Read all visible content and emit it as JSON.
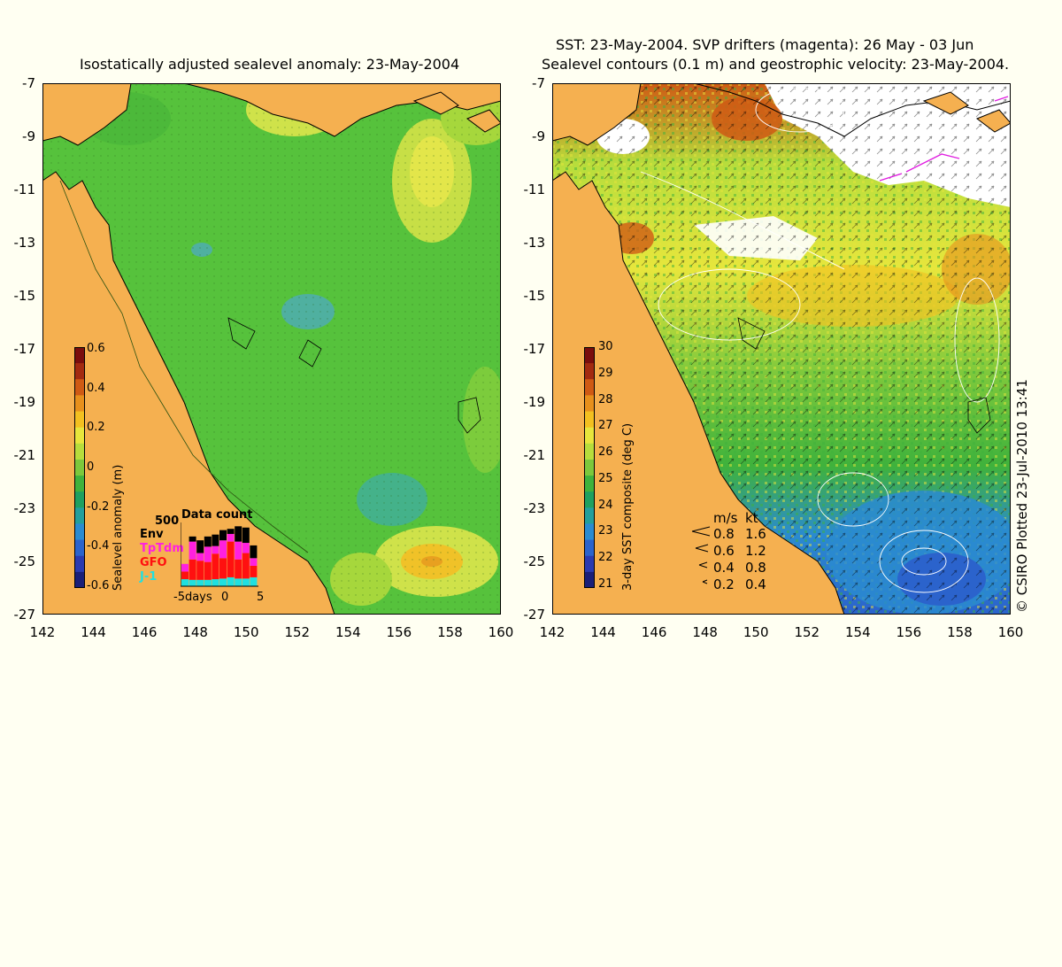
{
  "left": {
    "title": "Isostatically adjusted sealevel anomaly: 23-May-2004",
    "colorbar": {
      "label": "Sealevel anomaly (m)",
      "ticks": [
        "0.6",
        "0.4",
        "0.2",
        "0",
        "-0.2",
        "-0.4",
        "-0.6"
      ],
      "colors": [
        "#7a0d0d",
        "#a32a10",
        "#cf5a14",
        "#e7901c",
        "#f3c020",
        "#e7e63c",
        "#b7dd3c",
        "#7cc83c",
        "#3fb23c",
        "#1ea060",
        "#239f9c",
        "#2a8bd0",
        "#2b63cc",
        "#2a3ab0",
        "#1a1f78"
      ]
    },
    "data_count": {
      "title": "Data count",
      "max_label": "500",
      "legend": [
        {
          "name": "Env",
          "color": "#000000"
        },
        {
          "name": "TpTdm",
          "color": "#ff20e0"
        },
        {
          "name": "GFO",
          "color": "#ff1010"
        },
        {
          "name": "J-1",
          "color": "#20e0e0"
        }
      ],
      "x_min_label": "-5days",
      "x_mid_label": "0",
      "x_max_label": "5",
      "bars": [
        {
          "j1": 55,
          "gfo": 60,
          "tp": 60,
          "env": 0
        },
        {
          "j1": 50,
          "gfo": 160,
          "tp": 140,
          "env": 40
        },
        {
          "j1": 50,
          "gfo": 150,
          "tp": 60,
          "env": 100
        },
        {
          "j1": 50,
          "gfo": 140,
          "tp": 120,
          "env": 80
        },
        {
          "j1": 55,
          "gfo": 200,
          "tp": 60,
          "env": 90
        },
        {
          "j1": 60,
          "gfo": 160,
          "tp": 140,
          "env": 80
        },
        {
          "j1": 70,
          "gfo": 280,
          "tp": 60,
          "env": 40
        },
        {
          "j1": 60,
          "gfo": 150,
          "tp": 140,
          "env": 120
        },
        {
          "j1": 60,
          "gfo": 200,
          "tp": 80,
          "env": 120
        },
        {
          "j1": 70,
          "gfo": 90,
          "tp": 60,
          "env": 100
        }
      ]
    }
  },
  "right": {
    "title_line1": "SST: 23-May-2004. SVP drifters (magenta): 26 May - 03 Jun",
    "title_line2": "Sealevel contours (0.1 m) and geostrophic velocity: 23-May-2004.",
    "colorbar": {
      "label": "3-day SST composite (deg C)",
      "ticks": [
        "30",
        "29",
        "28",
        "27",
        "26",
        "25",
        "24",
        "23",
        "22",
        "21"
      ],
      "colors": [
        "#7a0d0d",
        "#a32a10",
        "#cf5a14",
        "#e7901c",
        "#f3c020",
        "#e7e63c",
        "#b7dd3c",
        "#7cc83c",
        "#3fb23c",
        "#1ea060",
        "#239f9c",
        "#2a8bd0",
        "#2b63cc",
        "#2a3ab0",
        "#1a1f78"
      ]
    },
    "velocity_legend": {
      "header_ms": "m/s",
      "header_kt": "kt",
      "rows": [
        {
          "ms": "0.8",
          "kt": "1.6"
        },
        {
          "ms": "0.6",
          "kt": "1.2"
        },
        {
          "ms": "0.4",
          "kt": "0.8"
        },
        {
          "ms": "0.2",
          "kt": "0.4"
        }
      ]
    }
  },
  "axes": {
    "y_ticks": [
      "-7",
      "-9",
      "-11",
      "-13",
      "-15",
      "-17",
      "-19",
      "-21",
      "-23",
      "-25",
      "-27"
    ],
    "x_ticks": [
      "142",
      "144",
      "146",
      "148",
      "150",
      "152",
      "154",
      "156",
      "158",
      "160"
    ]
  },
  "credit": "© CSIRO Plotted 23-Jul-2010 13:41",
  "colors": {
    "land": "#f5b050",
    "background": "#fffff2",
    "sea_anomaly": "#56c23c",
    "cloud": "#ffffff",
    "drifters": "#e020e0"
  }
}
